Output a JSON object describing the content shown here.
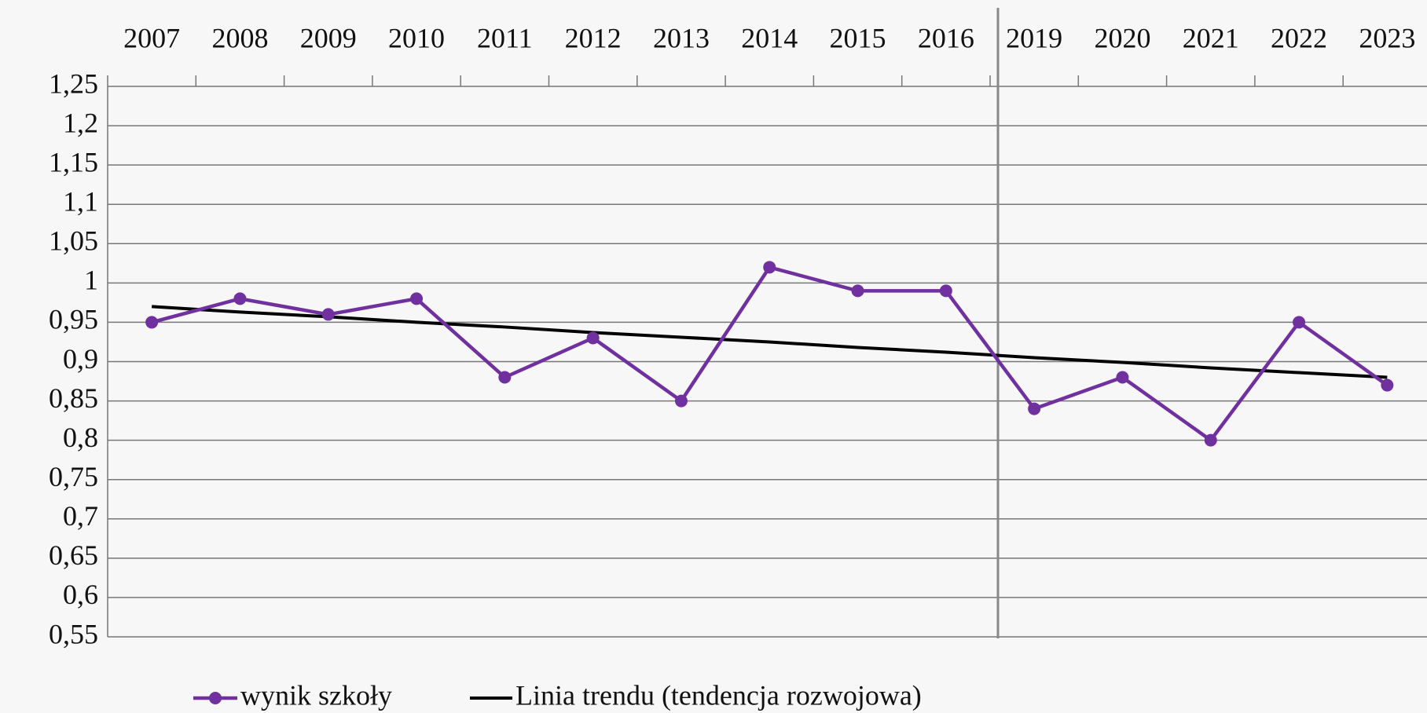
{
  "chart_data": {
    "type": "line",
    "categories": [
      "2007",
      "2008",
      "2009",
      "2010",
      "2011",
      "2012",
      "2013",
      "2014",
      "2015",
      "2016",
      "2019",
      "2020",
      "2021",
      "2022",
      "2023"
    ],
    "series": [
      {
        "name": "wynik szkoły",
        "color": "#7030a0",
        "values": [
          0.95,
          0.98,
          0.96,
          0.98,
          0.88,
          0.93,
          0.85,
          1.02,
          0.99,
          0.99,
          0.84,
          0.88,
          0.8,
          0.95,
          0.87
        ]
      },
      {
        "name": "Linia trendu (tendencja rozwojowa)",
        "color": "#000000",
        "values": [
          0.97,
          0.963,
          0.957,
          0.95,
          0.944,
          0.937,
          0.931,
          0.925,
          0.918,
          0.912,
          0.905,
          0.899,
          0.892,
          0.886,
          0.88
        ]
      }
    ],
    "ylim": [
      0.55,
      1.25
    ],
    "yticks": [
      {
        "value": 0.55,
        "label": "0,55"
      },
      {
        "value": 0.6,
        "label": "0,6"
      },
      {
        "value": 0.65,
        "label": "0,65"
      },
      {
        "value": 0.7,
        "label": "0,7"
      },
      {
        "value": 0.75,
        "label": "0,75"
      },
      {
        "value": 0.8,
        "label": "0,8"
      },
      {
        "value": 0.85,
        "label": "0,85"
      },
      {
        "value": 0.9,
        "label": "0,9"
      },
      {
        "value": 0.95,
        "label": "0,95"
      },
      1,
      {
        "value": 1.05,
        "label": "1,05"
      },
      {
        "value": 1.1,
        "label": "1,1"
      },
      {
        "value": 1.15,
        "label": "1,15"
      },
      {
        "value": 1.2,
        "label": "1,2"
      },
      {
        "value": 1.25,
        "label": "1,25"
      }
    ],
    "grid": true
  }
}
